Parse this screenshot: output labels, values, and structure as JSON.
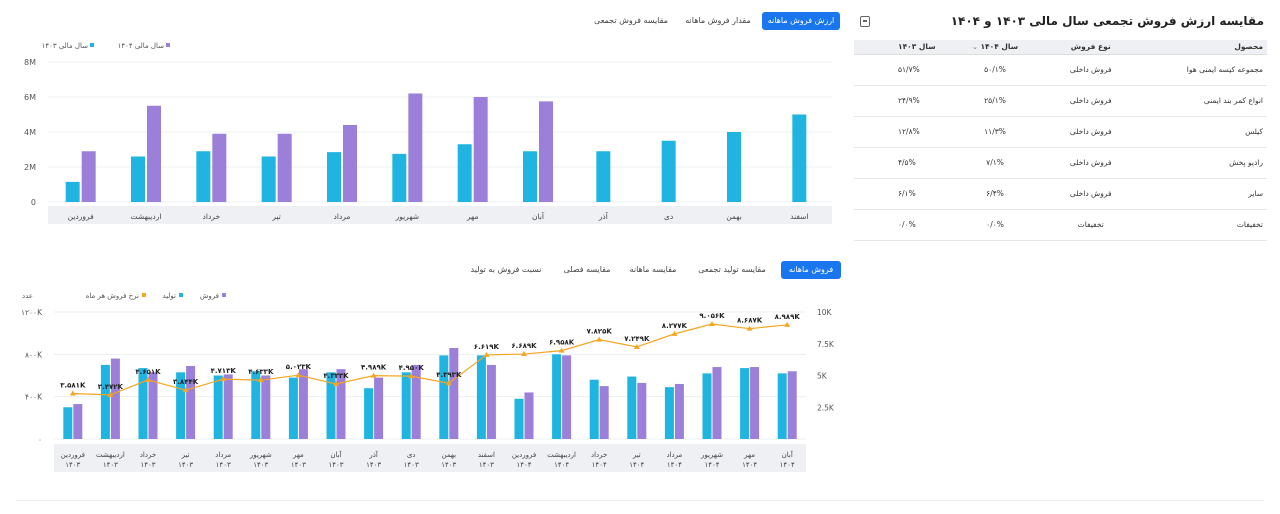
{
  "colors": {
    "cyan": "#1fb5e0",
    "purple": "#9b7fd8",
    "orange": "#f5a623",
    "accent": "#1976ee"
  },
  "top_tabs": [
    "ارزش فروش ماهانه",
    "مقدار فروش ماهانه",
    "مقایسه فروش تجمعی"
  ],
  "table": {
    "title": "مقایسه ارزش فروش تجمعی سال مالی ۱۴۰۳ و ۱۴۰۴",
    "headers": {
      "product": "محصول",
      "type": "نوع فروش",
      "y1404": "سال ۱۴۰۴",
      "y1403": "سال ۱۴۰۳"
    },
    "rows": [
      {
        "product": "مجموعه کیسه ایمنی هوا",
        "type": "فروش داخلی",
        "y1404": "۵۰/۱%",
        "y1403": "۵۱/۷%"
      },
      {
        "product": "انواع کمر بند ایمنی",
        "type": "فروش داخلی",
        "y1404": "۲۵/۱%",
        "y1403": "۲۴/۹%"
      },
      {
        "product": "کیلس",
        "type": "فروش داخلی",
        "y1404": "۱۱/۳%",
        "y1403": "۱۲/۸%"
      },
      {
        "product": "رادیو پخش",
        "type": "فروش داخلی",
        "y1404": "۷/۱%",
        "y1403": "۴/۵%"
      },
      {
        "product": "سایر",
        "type": "فروش داخلی",
        "y1404": "۶/۴%",
        "y1403": "۶/۱%"
      },
      {
        "product": "تخفیفات",
        "type": "تخفیفات",
        "y1404": "۰/۰%",
        "y1403": "۰/۰%"
      }
    ]
  },
  "chart_data": [
    {
      "type": "bar",
      "legend": [
        "سال مالی ۱۴۰۳",
        "سال مالی ۱۴۰۴"
      ],
      "ytick_labels": [
        "8M",
        "6M",
        "4M",
        "2M",
        "0"
      ],
      "ylim": [
        0,
        8000000
      ],
      "categories": [
        "فروردین",
        "اردیبهشت",
        "خرداد",
        "تیر",
        "مرداد",
        "شهریور",
        "مهر",
        "آبان",
        "آذر",
        "دی",
        "بهمن",
        "اسفند"
      ],
      "series": [
        {
          "name": "سال مالی ۱۴۰۳",
          "values": [
            1150000,
            2600000,
            2900000,
            2600000,
            2850000,
            2750000,
            3300000,
            2900000,
            2900000,
            3500000,
            4000000,
            5000000
          ]
        },
        {
          "name": "سال مالی ۱۴۰۴",
          "values": [
            2900000,
            5500000,
            3900000,
            3900000,
            4400000,
            6200000,
            6000000,
            5750000,
            null,
            null,
            null,
            null
          ]
        }
      ]
    },
    {
      "type": "bar",
      "legend": [
        "فروش",
        "تولید",
        "نرخ فروش هر ماه"
      ],
      "left_unit": "عدد",
      "ytick_labels_left": [
        "۱۲۰۰K",
        "۸۰۰K",
        "۴۰۰K",
        "۰"
      ],
      "ytick_labels_right": [
        "10K",
        "7.5K",
        "5K",
        "2.5K"
      ],
      "ylim_left": [
        0,
        1200000
      ],
      "ylim_right": [
        2500,
        10000
      ],
      "categories": [
        [
          "فروردین",
          "۱۴۰۳"
        ],
        [
          "اردیبهشت",
          "۱۴۰۳"
        ],
        [
          "خرداد",
          "۱۴۰۳"
        ],
        [
          "تیر",
          "۱۴۰۳"
        ],
        [
          "مرداد",
          "۱۴۰۳"
        ],
        [
          "شهریور",
          "۱۴۰۳"
        ],
        [
          "مهر",
          "۱۴۰۳"
        ],
        [
          "آبان",
          "۱۴۰۳"
        ],
        [
          "آذر",
          "۱۴۰۳"
        ],
        [
          "دی",
          "۱۴۰۳"
        ],
        [
          "بهمن",
          "۱۴۰۳"
        ],
        [
          "اسفند",
          "۱۴۰۳"
        ],
        [
          "فروردین",
          "۱۴۰۴"
        ],
        [
          "اردیبهشت",
          "۱۴۰۴"
        ],
        [
          "خرداد",
          "۱۴۰۴"
        ],
        [
          "تیر",
          "۱۴۰۴"
        ],
        [
          "مرداد",
          "۱۴۰۴"
        ],
        [
          "شهریور",
          "۱۴۰۴"
        ],
        [
          "مهر",
          "۱۴۰۴"
        ],
        [
          "آبان",
          "۱۴۰۴"
        ]
      ],
      "series": [
        {
          "name": "تولید",
          "values": [
            300000,
            700000,
            670000,
            630000,
            600000,
            640000,
            580000,
            630000,
            480000,
            630000,
            790000,
            790000,
            380000,
            800000,
            560000,
            590000,
            490000,
            620000,
            670000,
            620000
          ]
        },
        {
          "name": "فروش",
          "values": [
            330000,
            760000,
            630000,
            690000,
            610000,
            600000,
            660000,
            660000,
            580000,
            700000,
            860000,
            700000,
            440000,
            790000,
            500000,
            530000,
            520000,
            680000,
            680000,
            640000
          ]
        },
        {
          "name": "نرخ فروش هر ماه",
          "values": [
            3581,
            3472,
            4651,
            3844,
            4713,
            4633,
            5023,
            4333,
            4989,
            4950,
            4393,
            6619,
            6689,
            6958,
            7825,
            7249,
            8277,
            9056,
            8687,
            8989
          ]
        }
      ],
      "point_labels": [
        "۳.۵۸۱K",
        "۳.۴۷۲K",
        "۴.۶۵۱K",
        "۳.۸۴۴K",
        "۴.۷۱۳K",
        "۴.۶۳۳K",
        "۵.۰۲۳K",
        "۴.۳۳۳K",
        "۴.۹۸۹K",
        "۴.۹۵۰K",
        "۴.۳۹۳K",
        "۶.۶۱۹K",
        "۶.۶۸۹K",
        "۶.۹۵۸K",
        "۷.۸۲۵K",
        "۷.۲۴۹K",
        "۸.۲۷۷K",
        "۹.۰۵۶K",
        "۸.۶۸۷K",
        "۸.۹۸۹K"
      ]
    }
  ],
  "bottom_tabs": [
    "فروش ماهانه",
    "مقایسه تولید تجمعی",
    "مقایسه ماهانه",
    "مقایسه فصلی",
    "نسبت فروش به تولید"
  ]
}
